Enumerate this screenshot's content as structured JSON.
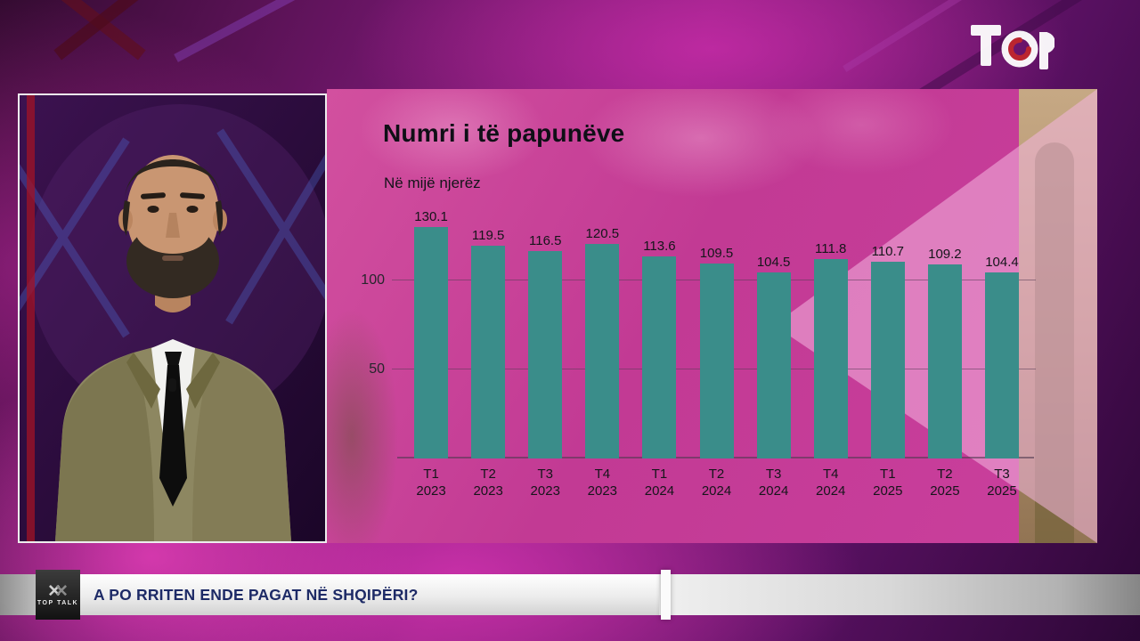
{
  "channel": {
    "name": "TOP"
  },
  "chart_data": {
    "type": "bar",
    "title": "Numri i të papunëve",
    "subtitle": "Në mijë njerëz",
    "categories": [
      "T1 2023",
      "T2 2023",
      "T3 2023",
      "T4 2023",
      "T1 2024",
      "T2 2024",
      "T3 2024",
      "T4 2024",
      "T1 2025",
      "T2 2025",
      "T3 2025"
    ],
    "values": [
      130.1,
      119.5,
      116.5,
      120.5,
      113.6,
      109.5,
      104.5,
      111.8,
      110.7,
      109.2,
      104.4
    ],
    "xlabel": "",
    "ylabel": "",
    "ylim": [
      0,
      140
    ],
    "yticks": [
      50,
      100
    ],
    "grid": true,
    "legend": "none",
    "bar_color": "#3a8d8a",
    "panel_color": "#c63d98"
  },
  "lower_third": {
    "program_label": "TOP TALK",
    "headline": "A PO RRITEN ENDE PAGAT NË SHQIPËRI?"
  }
}
